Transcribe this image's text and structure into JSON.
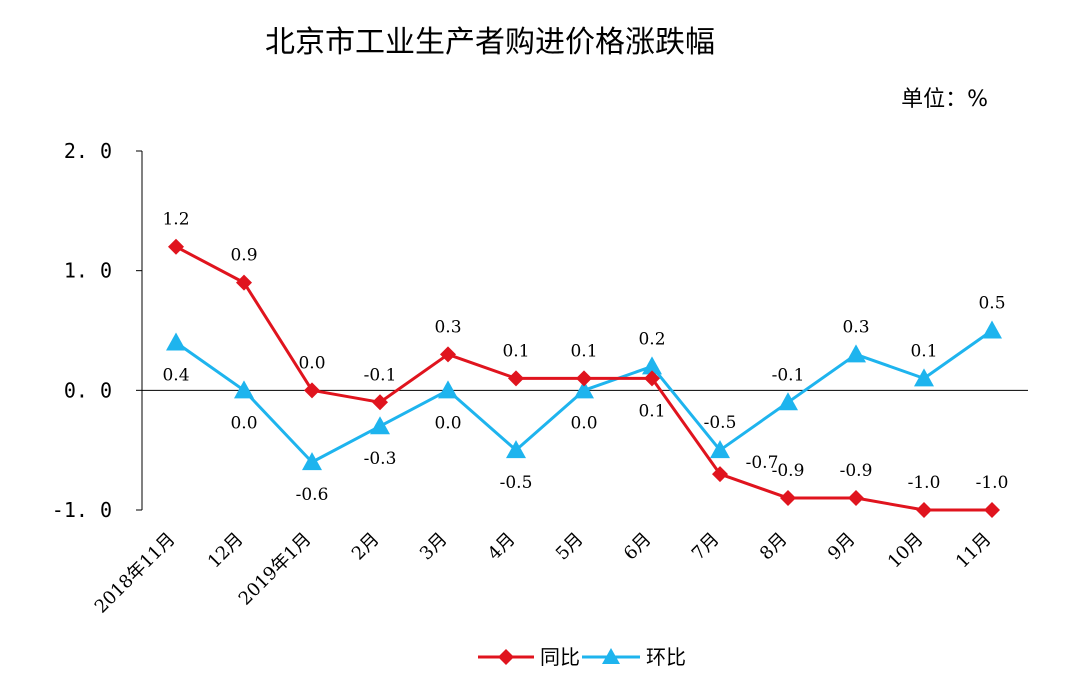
{
  "chart_data": {
    "type": "line",
    "title": "北京市工业生产者购进价格涨跌幅",
    "unit_label": "单位：%",
    "categories": [
      "2018年11月",
      "12月",
      "2019年1月",
      "2月",
      "3月",
      "4月",
      "5月",
      "6月",
      "7月",
      "8月",
      "9月",
      "10月",
      "11月"
    ],
    "ylim": [
      -1.0,
      2.0
    ],
    "yticks": [
      "2.0",
      "1.0",
      "0.0",
      "-1.0"
    ],
    "series": [
      {
        "name": "同比",
        "color": "#E0141E",
        "marker": "diamond",
        "values": [
          1.2,
          0.9,
          0.0,
          -0.1,
          0.3,
          0.1,
          0.1,
          0.1,
          -0.7,
          -0.9,
          -0.9,
          -1.0,
          -1.0
        ],
        "labels": [
          "1.2",
          "0.9",
          "0.0",
          "-0.1",
          "0.3",
          "0.1",
          "0.1",
          "0.1",
          "-0.7",
          "-0.9",
          "-0.9",
          "-1.0",
          "-1.0"
        ],
        "label_pos": [
          "above",
          "above",
          "above",
          "above",
          "above",
          "above",
          "above",
          "below",
          "right",
          "above",
          "above",
          "above",
          "above"
        ]
      },
      {
        "name": "环比",
        "color": "#1EB4EE",
        "marker": "triangle",
        "values": [
          0.4,
          0.0,
          -0.6,
          -0.3,
          0.0,
          -0.5,
          0.0,
          0.2,
          -0.5,
          -0.1,
          0.3,
          0.1,
          0.5
        ],
        "labels": [
          "0.4",
          "0.0",
          "-0.6",
          "-0.3",
          "0.0",
          "-0.5",
          "0.0",
          "0.2",
          "-0.5",
          "-0.1",
          "0.3",
          "0.1",
          "0.5"
        ],
        "label_pos": [
          "below",
          "below",
          "below",
          "below",
          "below",
          "below",
          "below",
          "above",
          "above",
          "above",
          "above",
          "above",
          "above"
        ]
      }
    ],
    "legend": "bottom"
  }
}
